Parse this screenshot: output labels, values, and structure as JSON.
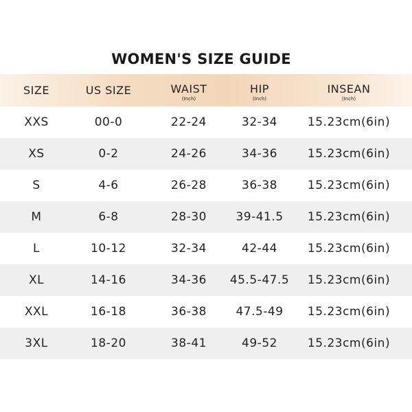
{
  "title": "WOMEN'S SIZE GUIDE",
  "table": {
    "header": [
      {
        "label": "SIZE"
      },
      {
        "label": "US SIZE"
      },
      {
        "label": "WAIST",
        "unit": "(Inch)"
      },
      {
        "label": "HIP",
        "unit": "(Inch)"
      },
      {
        "label": "INSEAN",
        "unit": "(Inch)"
      }
    ],
    "rows": [
      [
        "XXS",
        "00-0",
        "22-24",
        "32-34",
        "15.23cm(6in)"
      ],
      [
        "XS",
        "0-2",
        "24-26",
        "34-36",
        "15.23cm(6in)"
      ],
      [
        "S",
        "4-6",
        "26-28",
        "36-38",
        "15.23cm(6in)"
      ],
      [
        "M",
        "6-8",
        "28-30",
        "39-41.5",
        "15.23cm(6in)"
      ],
      [
        "L",
        "10-12",
        "32-34",
        "42-44",
        "15.23cm(6in)"
      ],
      [
        "XL",
        "14-16",
        "34-36",
        "45.5-47.5",
        "15.23cm(6in)"
      ],
      [
        "XXL",
        "16-18",
        "36-38",
        "47.5-49",
        "15.23cm(6in)"
      ],
      [
        "3XL",
        "18-20",
        "38-41",
        "49-52",
        "15.23cm(6in)"
      ]
    ]
  }
}
